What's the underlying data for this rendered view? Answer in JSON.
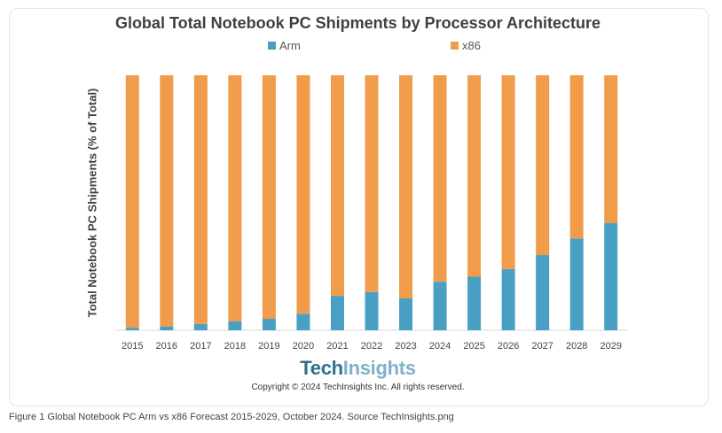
{
  "chart_data": {
    "type": "bar",
    "stacked": true,
    "title": "Global Total Notebook PC Shipments by Processor Architecture",
    "ylabel": "Total Notebook PC Shipments (% of Total)",
    "xlabel": "",
    "ylim": [
      0,
      100
    ],
    "legend_position": "top",
    "categories": [
      "2015",
      "2016",
      "2017",
      "2018",
      "2019",
      "2020",
      "2021",
      "2022",
      "2023",
      "2024",
      "2025",
      "2026",
      "2027",
      "2028",
      "2029"
    ],
    "series": [
      {
        "name": "Arm",
        "color": "#4a9fc4",
        "values": [
          1,
          1.5,
          2.5,
          3.5,
          4.5,
          6.5,
          13.5,
          15,
          12.5,
          19,
          21,
          24,
          29.5,
          36,
          42
        ]
      },
      {
        "name": "x86",
        "color": "#f09c4b",
        "values": [
          99,
          98.5,
          97.5,
          96.5,
          95.5,
          93.5,
          86.5,
          85,
          87.5,
          81,
          79,
          76,
          70.5,
          64,
          58
        ]
      }
    ]
  },
  "brand": {
    "part1": "Tech",
    "part2": "Insights"
  },
  "copyright": "Copyright © 2024 TechInsights Inc.  All rights reserved.",
  "caption": "Figure 1 Global Notebook PC Arm vs x86 Forecast 2015-2029, October 2024. Source TechInsights.png"
}
